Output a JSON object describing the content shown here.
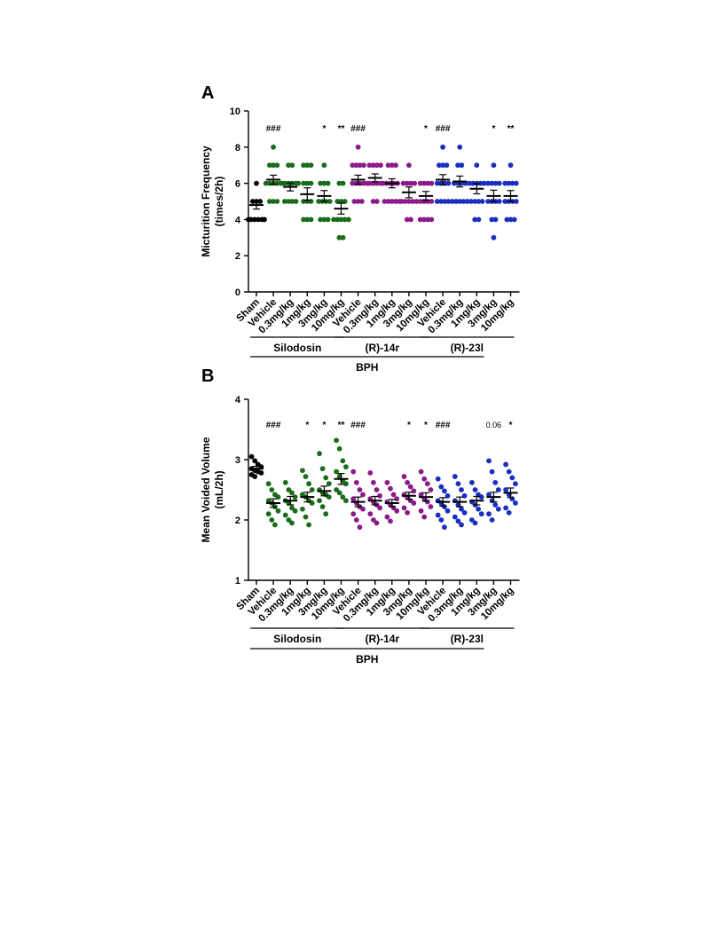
{
  "figure": {
    "panel_a_letter": "A",
    "panel_b_letter": "B"
  },
  "colors": {
    "sham": "#000000",
    "silodosin": "#1a6b1a",
    "r14r": "#8b1a8b",
    "r23l": "#1a2fbf"
  },
  "chart_data": [
    {
      "type": "scatter",
      "panel": "A",
      "ylabel_line1": "Micturition Frequency",
      "ylabel_line2": "(times/2h)",
      "ylim": [
        0,
        10
      ],
      "yticks": [
        "0",
        "2",
        "4",
        "6",
        "8",
        "10"
      ],
      "categories": [
        "Sham",
        "Vehicle",
        "0.3mg/kg",
        "1mg/kg",
        "3mg/kg",
        "10mg/kg",
        "Vehicle",
        "0.3mg/kg",
        "1mg/kg",
        "3mg/kg",
        "10mg/kg",
        "Vehicle",
        "0.3mg/kg",
        "1mg/kg",
        "3mg/kg",
        "10mg/kg"
      ],
      "group_colors": [
        "sham",
        "silodosin",
        "silodosin",
        "silodosin",
        "silodosin",
        "silodosin",
        "r14r",
        "r14r",
        "r14r",
        "r14r",
        "r14r",
        "r23l",
        "r23l",
        "r23l",
        "r23l",
        "r23l"
      ],
      "points": [
        [
          6,
          5,
          5,
          5,
          4,
          4,
          4,
          4,
          4,
          4
        ],
        [
          8,
          7,
          7,
          7,
          6,
          6,
          6,
          6,
          6,
          5,
          5,
          5
        ],
        [
          7,
          7,
          6,
          6,
          6,
          6,
          6,
          6,
          5,
          5,
          5,
          5
        ],
        [
          7,
          7,
          7,
          6,
          6,
          6,
          5,
          5,
          5,
          4,
          4,
          4
        ],
        [
          7,
          6,
          6,
          6,
          5,
          5,
          5,
          5,
          4,
          4,
          4
        ],
        [
          6,
          6,
          5,
          5,
          5,
          4,
          4,
          4,
          4,
          4,
          3,
          3
        ],
        [
          8,
          7,
          7,
          7,
          7,
          6,
          6,
          6,
          6,
          5,
          5,
          5
        ],
        [
          7,
          7,
          7,
          7,
          6,
          6,
          6,
          6,
          6,
          6,
          5,
          5
        ],
        [
          7,
          7,
          7,
          6,
          6,
          6,
          6,
          5,
          5,
          5,
          5,
          5
        ],
        [
          7,
          6,
          6,
          6,
          6,
          5,
          5,
          5,
          5,
          5,
          4,
          4
        ],
        [
          6,
          6,
          6,
          6,
          5,
          5,
          5,
          5,
          4,
          4,
          4,
          4
        ],
        [
          8,
          7,
          7,
          7,
          6,
          6,
          6,
          6,
          5,
          5,
          5,
          5
        ],
        [
          8,
          7,
          7,
          6,
          6,
          6,
          6,
          5,
          5,
          5,
          5,
          5
        ],
        [
          7,
          6,
          6,
          6,
          6,
          6,
          5,
          5,
          5,
          5,
          4,
          4
        ],
        [
          7,
          6,
          6,
          6,
          6,
          5,
          5,
          5,
          5,
          4,
          4,
          3
        ],
        [
          7,
          6,
          6,
          6,
          6,
          5,
          5,
          5,
          5,
          4,
          4,
          4
        ]
      ],
      "mean": [
        4.8,
        6.2,
        5.8,
        5.4,
        5.3,
        4.6,
        6.2,
        6.3,
        6.0,
        5.5,
        5.3,
        6.2,
        6.1,
        5.7,
        5.3,
        5.3
      ],
      "sem": [
        0.22,
        0.25,
        0.22,
        0.35,
        0.3,
        0.3,
        0.25,
        0.22,
        0.25,
        0.3,
        0.25,
        0.28,
        0.3,
        0.28,
        0.32,
        0.3
      ],
      "annotations": [
        "",
        "###",
        "",
        "",
        "*",
        "**",
        "###",
        "",
        "",
        "",
        "*",
        "###",
        "",
        "",
        "*",
        "**"
      ],
      "group_labels": [
        "Silodosin",
        "(R)-14r",
        "(R)-23l"
      ],
      "group_label_italic": [
        "",
        "R",
        "R"
      ],
      "bottom_label": "BPH"
    },
    {
      "type": "scatter",
      "panel": "B",
      "ylabel_line1": "Mean Voided Volume",
      "ylabel_line2": "(mL/2h)",
      "ylim": [
        1,
        4
      ],
      "yticks": [
        "1",
        "2",
        "3",
        "4"
      ],
      "categories": [
        "Sham",
        "Vehicle",
        "0.3mg/kg",
        "1mg/kg",
        "3mg/kg",
        "10mg/kg",
        "Vehicle",
        "0.3mg/kg",
        "1mg/kg",
        "3mg/kg",
        "10mg/kg",
        "Vehicle",
        "0.3mg/kg",
        "1mg/kg",
        "3mg/kg",
        "10mg/kg"
      ],
      "group_colors": [
        "sham",
        "silodosin",
        "silodosin",
        "silodosin",
        "silodosin",
        "silodosin",
        "r14r",
        "r14r",
        "r14r",
        "r14r",
        "r14r",
        "r23l",
        "r23l",
        "r23l",
        "r23l",
        "r23l"
      ],
      "points": [
        [
          3.05,
          2.98,
          2.92,
          2.88,
          2.85,
          2.82,
          2.8,
          2.78,
          2.75,
          2.72
        ],
        [
          2.6,
          2.5,
          2.42,
          2.38,
          2.32,
          2.28,
          2.22,
          2.15,
          2.1,
          2.0,
          1.92
        ],
        [
          2.62,
          2.5,
          2.45,
          2.38,
          2.32,
          2.28,
          2.2,
          2.15,
          2.08,
          2.0,
          1.95
        ],
        [
          2.82,
          2.72,
          2.6,
          2.5,
          2.42,
          2.38,
          2.32,
          2.28,
          2.18,
          2.05,
          1.92
        ],
        [
          3.1,
          2.85,
          2.7,
          2.6,
          2.5,
          2.45,
          2.42,
          2.38,
          2.32,
          2.22,
          2.1
        ],
        [
          3.32,
          3.18,
          2.98,
          2.88,
          2.8,
          2.72,
          2.65,
          2.6,
          2.5,
          2.45,
          2.38,
          2.32
        ],
        [
          2.8,
          2.62,
          2.5,
          2.42,
          2.35,
          2.28,
          2.22,
          2.18,
          2.1,
          2.0,
          1.88
        ],
        [
          2.78,
          2.62,
          2.5,
          2.4,
          2.35,
          2.3,
          2.25,
          2.2,
          2.1,
          2.0,
          1.95
        ],
        [
          2.62,
          2.52,
          2.42,
          2.35,
          2.3,
          2.25,
          2.2,
          2.15,
          2.05,
          1.98
        ],
        [
          2.72,
          2.62,
          2.55,
          2.48,
          2.42,
          2.38,
          2.32,
          2.28,
          2.2,
          2.12
        ],
        [
          2.8,
          2.68,
          2.6,
          2.5,
          2.42,
          2.35,
          2.3,
          2.22,
          2.15,
          2.05
        ],
        [
          2.68,
          2.55,
          2.48,
          2.4,
          2.32,
          2.28,
          2.22,
          2.15,
          2.08,
          2.0,
          1.88
        ],
        [
          2.72,
          2.6,
          2.5,
          2.4,
          2.32,
          2.25,
          2.18,
          2.12,
          2.05,
          1.98,
          1.92
        ],
        [
          2.62,
          2.5,
          2.42,
          2.38,
          2.3,
          2.25,
          2.18,
          2.1,
          2.0,
          1.95
        ],
        [
          2.98,
          2.8,
          2.62,
          2.5,
          2.42,
          2.32,
          2.25,
          2.18,
          2.1,
          2.0
        ],
        [
          2.92,
          2.8,
          2.7,
          2.6,
          2.5,
          2.42,
          2.35,
          2.28,
          2.2,
          2.12
        ]
      ],
      "mean": [
        2.85,
        2.28,
        2.32,
        2.38,
        2.48,
        2.68,
        2.3,
        2.32,
        2.28,
        2.4,
        2.38,
        2.3,
        2.3,
        2.32,
        2.38,
        2.45
      ],
      "sem": [
        0.04,
        0.07,
        0.07,
        0.08,
        0.08,
        0.09,
        0.08,
        0.07,
        0.06,
        0.06,
        0.07,
        0.07,
        0.08,
        0.07,
        0.08,
        0.08
      ],
      "annotations": [
        "",
        "###",
        "",
        "*",
        "*",
        "**",
        "###",
        "",
        "",
        "*",
        "*",
        "###",
        "",
        "",
        "0.06",
        "*"
      ],
      "group_labels": [
        "Silodosin",
        "(R)-14r",
        "(R)-23l"
      ],
      "group_label_italic": [
        "",
        "R",
        "R"
      ],
      "bottom_label": "BPH"
    }
  ]
}
